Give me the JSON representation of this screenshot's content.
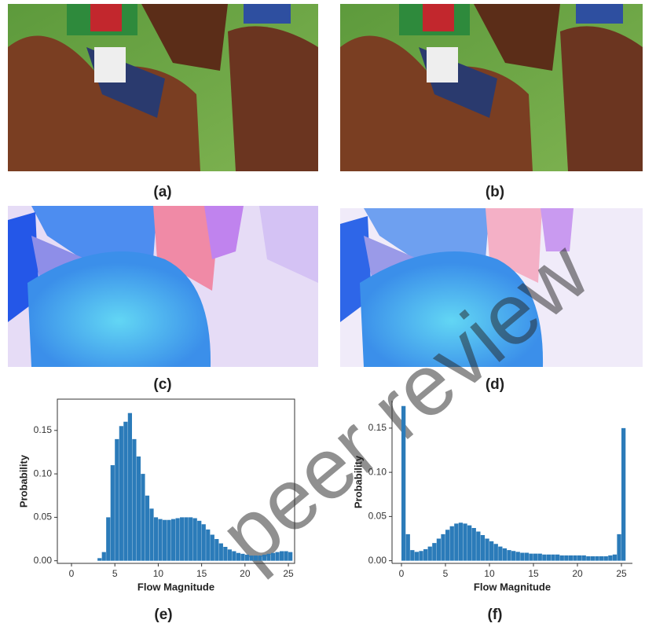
{
  "panels": [
    "(a)",
    "(b)",
    "(c)",
    "(d)",
    "(e)",
    "(f)"
  ],
  "watermark": "peer review",
  "chart_data": [
    {
      "type": "histogram",
      "xlabel": "Flow Magnitude",
      "ylabel": "Probability",
      "color": "#2b7bb9",
      "box": true,
      "bins": [
        0,
        0.5,
        1,
        1.5,
        2,
        2.5,
        3,
        3.5,
        4,
        4.5,
        5,
        5.5,
        6,
        6.5,
        7,
        7.5,
        8,
        8.5,
        9,
        9.5,
        10,
        10.5,
        11,
        11.5,
        12,
        12.5,
        13,
        13.5,
        14,
        14.5,
        15,
        15.5,
        16,
        16.5,
        17,
        17.5,
        18,
        18.5,
        19,
        19.5,
        20,
        20.5,
        21,
        21.5,
        22,
        22.5,
        23,
        23.5,
        24,
        24.5,
        25,
        25.5
      ],
      "values": [
        0,
        0,
        0,
        0,
        0,
        0,
        0.003,
        0.01,
        0.05,
        0.11,
        0.14,
        0.155,
        0.16,
        0.17,
        0.14,
        0.12,
        0.1,
        0.075,
        0.06,
        0.05,
        0.048,
        0.047,
        0.047,
        0.048,
        0.049,
        0.05,
        0.05,
        0.05,
        0.049,
        0.046,
        0.042,
        0.036,
        0.03,
        0.025,
        0.02,
        0.016,
        0.013,
        0.011,
        0.009,
        0.008,
        0.007,
        0.006,
        0.006,
        0.006,
        0.007,
        0.008,
        0.009,
        0.01,
        0.011,
        0.011,
        0.01
      ],
      "xlim": [
        -1.63,
        25.72
      ],
      "ylim": [
        -0.003,
        0.186
      ],
      "xticks": [
        0,
        5,
        10,
        15,
        20,
        25
      ],
      "yticks": [
        {
          "value": 0,
          "label": "0.00"
        },
        {
          "value": 0.05,
          "label": "0.05"
        },
        {
          "value": 0.1,
          "label": "0.10"
        },
        {
          "value": 0.15,
          "label": "0.15"
        }
      ]
    },
    {
      "type": "histogram",
      "xlabel": "Flow Magnitude",
      "ylabel": "Probability",
      "color": "#2b7bb9",
      "box": false,
      "bins": [
        0,
        0.5,
        1,
        1.5,
        2,
        2.5,
        3,
        3.5,
        4,
        4.5,
        5,
        5.5,
        6,
        6.5,
        7,
        7.5,
        8,
        8.5,
        9,
        9.5,
        10,
        10.5,
        11,
        11.5,
        12,
        12.5,
        13,
        13.5,
        14,
        14.5,
        15,
        15.5,
        16,
        16.5,
        17,
        17.5,
        18,
        18.5,
        19,
        19.5,
        20,
        20.5,
        21,
        21.5,
        22,
        22.5,
        23,
        23.5,
        24,
        24.5,
        25,
        25.5
      ],
      "values": [
        0.175,
        0.03,
        0.012,
        0.01,
        0.011,
        0.013,
        0.016,
        0.02,
        0.025,
        0.03,
        0.035,
        0.039,
        0.042,
        0.043,
        0.042,
        0.04,
        0.037,
        0.033,
        0.029,
        0.025,
        0.022,
        0.019,
        0.016,
        0.014,
        0.012,
        0.011,
        0.01,
        0.009,
        0.009,
        0.008,
        0.008,
        0.008,
        0.007,
        0.007,
        0.007,
        0.007,
        0.006,
        0.006,
        0.006,
        0.006,
        0.006,
        0.006,
        0.005,
        0.005,
        0.005,
        0.005,
        0.005,
        0.006,
        0.007,
        0.03,
        0.15
      ],
      "xlim": [
        -1.07,
        26.25
      ],
      "ylim": [
        -0.003,
        0.181
      ],
      "xticks": [
        0,
        5,
        10,
        15,
        20,
        25
      ],
      "yticks": [
        {
          "value": 0,
          "label": "0.00"
        },
        {
          "value": 0.05,
          "label": "0.05"
        },
        {
          "value": 0.1,
          "label": "0.10"
        },
        {
          "value": 0.15,
          "label": "0.15"
        }
      ]
    }
  ]
}
